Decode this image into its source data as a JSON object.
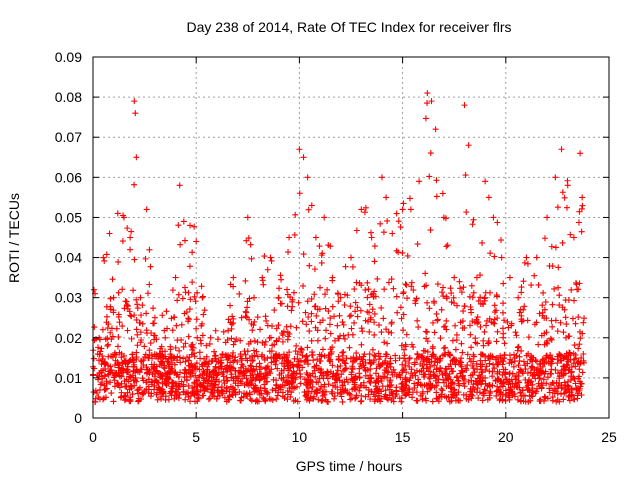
{
  "chart_data": {
    "type": "scatter",
    "title": "Day 238 of 2014, Rate Of TEC Index for receiver flrs",
    "xlabel": "GPS time / hours",
    "ylabel": "ROTI / TECUs",
    "xlim": [
      0,
      25
    ],
    "ylim": [
      0,
      0.09
    ],
    "xticks": [
      0,
      5,
      10,
      15,
      20,
      25
    ],
    "yticks": [
      0,
      0.01,
      0.02,
      0.03,
      0.04,
      0.05,
      0.06,
      0.07,
      0.08,
      0.09
    ],
    "xtick_labels": [
      "0",
      "5",
      "10",
      "15",
      "20",
      "25"
    ],
    "ytick_labels": [
      "0",
      "0.01",
      "0.02",
      "0.03",
      "0.04",
      "0.05",
      "0.06",
      "0.07",
      "0.08",
      "0.09"
    ],
    "grid": true,
    "marker": "+",
    "color": "#ff0000",
    "data_range_hours": [
      0,
      23.8
    ],
    "series": [
      {
        "name": "ROTI",
        "x": [
          0.1,
          0.3,
          0.5,
          0.8,
          1.0,
          1.2,
          1.5,
          1.8,
          2.0,
          2.05,
          2.1,
          2.3,
          2.6,
          3.0,
          3.5,
          4.0,
          4.2,
          4.4,
          4.7,
          5.0,
          5.3,
          5.7,
          6.2,
          6.8,
          7.2,
          7.5,
          7.8,
          8.2,
          8.6,
          9.0,
          9.5,
          10.0,
          10.2,
          10.4,
          10.6,
          10.8,
          11.2,
          11.6,
          12.0,
          12.5,
          13.0,
          13.5,
          14.0,
          14.2,
          14.5,
          15.0,
          15.4,
          15.8,
          16.2,
          16.4,
          16.6,
          17.0,
          17.5,
          18.0,
          18.2,
          18.6,
          19.0,
          19.4,
          19.8,
          20.2,
          20.6,
          21.0,
          21.5,
          22.0,
          22.4,
          22.7,
          23.0,
          23.3,
          23.6,
          23.7
        ],
        "y": [
          0.031,
          0.02,
          0.04,
          0.046,
          0.03,
          0.051,
          0.05,
          0.045,
          0.079,
          0.076,
          0.065,
          0.03,
          0.052,
          0.025,
          0.02,
          0.035,
          0.058,
          0.049,
          0.048,
          0.044,
          0.03,
          0.02,
          0.015,
          0.035,
          0.025,
          0.05,
          0.03,
          0.035,
          0.04,
          0.03,
          0.045,
          0.067,
          0.065,
          0.06,
          0.053,
          0.045,
          0.05,
          0.035,
          0.03,
          0.04,
          0.052,
          0.045,
          0.06,
          0.055,
          0.046,
          0.052,
          0.052,
          0.059,
          0.081,
          0.079,
          0.072,
          0.05,
          0.035,
          0.078,
          0.068,
          0.035,
          0.059,
          0.05,
          0.04,
          0.035,
          0.03,
          0.04,
          0.04,
          0.05,
          0.06,
          0.067,
          0.058,
          0.045,
          0.066,
          0.055
        ]
      }
    ]
  }
}
